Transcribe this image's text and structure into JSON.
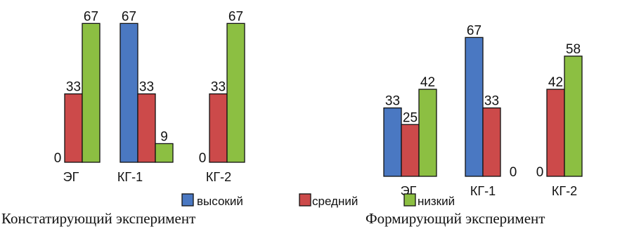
{
  "colors": {
    "high": "#4a78c2",
    "medium": "#cc4a4a",
    "low": "#8cbf42",
    "outline": "#111111"
  },
  "chart_data": [
    {
      "type": "bar",
      "title": "Констатирующий эксперимент",
      "categories": [
        "ЭГ",
        "КГ-1",
        "КГ-2"
      ],
      "series": [
        {
          "name": "высокий",
          "values": [
            0,
            67,
            0
          ],
          "color": "#4a78c2"
        },
        {
          "name": "средний",
          "values": [
            33,
            33,
            33
          ],
          "color": "#cc4a4a"
        },
        {
          "name": "низкий",
          "values": [
            67,
            9,
            67
          ],
          "color": "#8cbf42"
        }
      ],
      "xlabel": "",
      "ylabel": "",
      "ylim": [
        0,
        67
      ],
      "grid": false,
      "legend": "bottom"
    },
    {
      "type": "bar",
      "title": "Формирующий эксперимент",
      "categories": [
        "ЭГ",
        "КГ-1",
        "КГ-2"
      ],
      "series": [
        {
          "name": "высокий",
          "values": [
            33,
            67,
            0
          ],
          "color": "#4a78c2"
        },
        {
          "name": "средний",
          "values": [
            25,
            33,
            42
          ],
          "color": "#cc4a4a"
        },
        {
          "name": "низкий",
          "values": [
            42,
            0,
            58
          ],
          "color": "#8cbf42"
        }
      ],
      "xlabel": "",
      "ylabel": "",
      "ylim": [
        0,
        67
      ],
      "grid": false,
      "legend": "bottom"
    }
  ],
  "legend": {
    "items": [
      {
        "label": "высокий",
        "color": "#4a78c2"
      },
      {
        "label": "средний",
        "color": "#cc4a4a"
      },
      {
        "label": "низкий",
        "color": "#8cbf42"
      }
    ]
  },
  "captions": {
    "left": "Констатирующий эксперимент",
    "right": "Формирующий эксперимент"
  }
}
